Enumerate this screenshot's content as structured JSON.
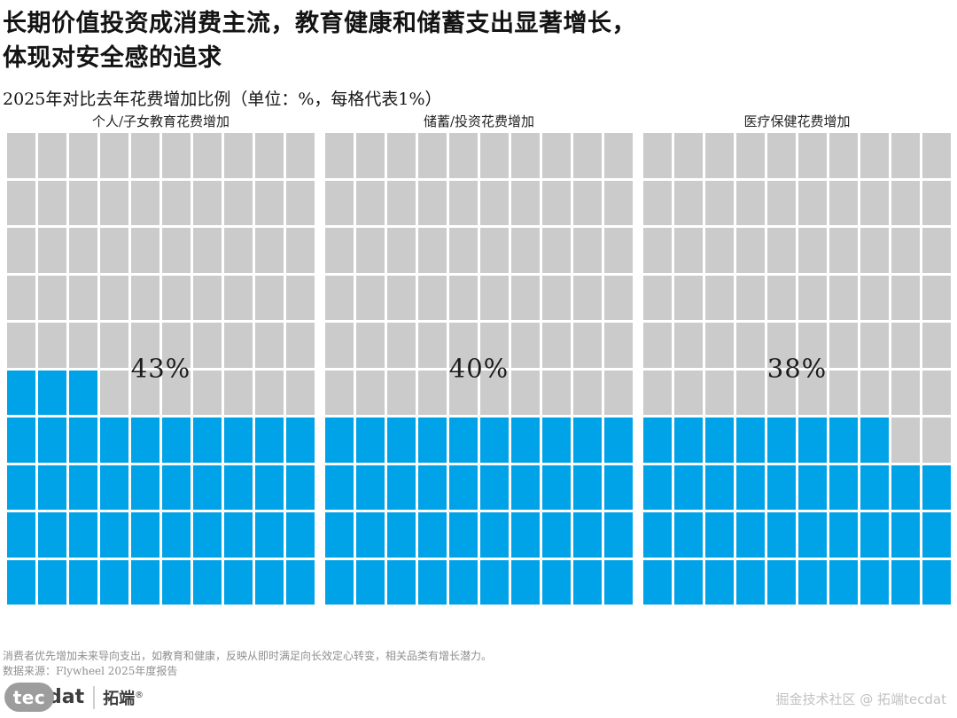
{
  "header": {
    "title_line1": "长期价值投资成消费主流，教育健康和储蓄支出显著增长，",
    "title_line2": "体现对安全感的追求",
    "subtitle": "2025年对比去年花费增加比例（单位：%，每格代表1%）"
  },
  "chart_data": {
    "type": "waffle",
    "title": "2025年对比去年花费增加比例",
    "unit": "%",
    "grid": {
      "rows": 10,
      "cols": 10,
      "cell_represents": "1%",
      "fill_origin": "bottom-left"
    },
    "categories": [
      "个人/子女教育花费增加",
      "储蓄/投资花费增加",
      "医疗保健花费增加"
    ],
    "values": [
      43,
      40,
      38
    ],
    "panels": [
      {
        "label": "个人/子女教育花费增加",
        "value": 43,
        "value_label": "43%"
      },
      {
        "label": "储蓄/投资花费增加",
        "value": 40,
        "value_label": "40%"
      },
      {
        "label": "医疗保健花费增加",
        "value": 38,
        "value_label": "38%"
      }
    ],
    "colors": {
      "filled_blue": "#00A3E8",
      "empty_gray": "#CBCBCB",
      "gap": "#FFFFFF"
    },
    "legend_position": "none",
    "grid_lines": "white gaps between cells"
  },
  "footer": {
    "note": "消费者优先增加未来导向支出，如教育和健康，反映从即时满足向长效定心转变，相关品类有增长潜力。",
    "source": "数据来源：Flywheel 2025年度报告"
  },
  "branding": {
    "logo_tec": "tec",
    "logo_dat": "dat",
    "logo_cn": "拓端",
    "logo_reg": "®",
    "watermark": "掘金技术社区 @ 拓端tecdat"
  }
}
